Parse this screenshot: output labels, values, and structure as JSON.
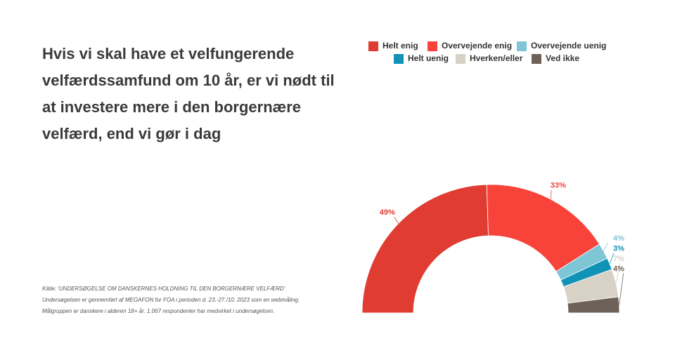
{
  "chart_data": {
    "type": "half-donut",
    "title": "Hvis vi skal have et velfungerende velfærdssamfund om 10 år, er vi nødt til at investere mere i den borgernære velfærd, end vi gør i dag",
    "source": [
      "Kilde: 'UNDERSØGELSE OM DANSKERNES HOLDNING TIL DEN BORGERNÆRE VELFÆRD'",
      "Undersøgelsen er gennemført af MEGAFON for FOA i perioden d. 23.-27./10. 2023 som en webmåling.",
      "Målgruppen er danskere i alderen 18+ år. 1.067 respondenter har medvirket i undersøgelsen."
    ],
    "categories": [
      "Helt enig",
      "Overvejende enig",
      "Overvejende uenig",
      "Helt uenig",
      "Hverken/eller",
      "Ved ikke"
    ],
    "values": [
      49,
      33,
      4,
      3,
      7,
      4
    ],
    "value_labels": [
      "49%",
      "33%",
      "4%",
      "3%",
      "7%",
      "4%"
    ],
    "colors": [
      "#e03c31",
      "#f8433a",
      "#7ec6d6",
      "#1193b8",
      "#d8d2c6",
      "#6e6158"
    ]
  }
}
